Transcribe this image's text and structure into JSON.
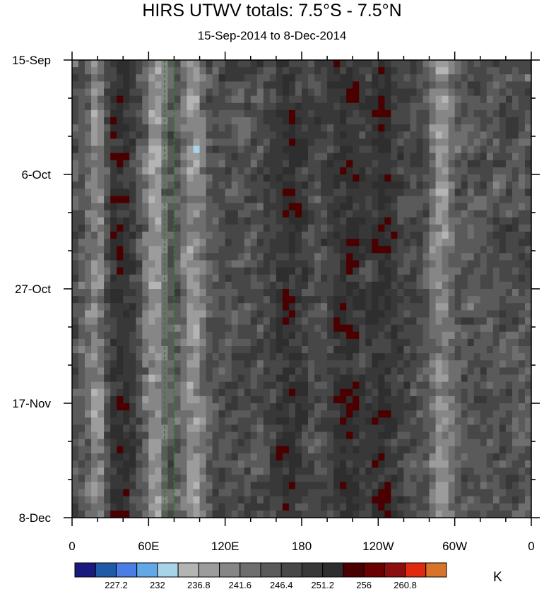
{
  "chart_data": {
    "type": "heatmap",
    "title": "HIRS UTWV totals: 7.5°S - 7.5°N",
    "subtitle": "15-Sep-2014 to 8-Dec-2014",
    "x_tick_labels": [
      "0",
      "60E",
      "120E",
      "180",
      "120W",
      "60W",
      "0"
    ],
    "x_range": [
      0,
      360
    ],
    "y_tick_labels": [
      "15-Sep",
      "6-Oct",
      "27-Oct",
      "17-Nov",
      "8-Dec"
    ],
    "y_range": [
      "2014-09-15",
      "2014-12-08"
    ],
    "reference_lines_lon": [
      72.5,
      80
    ],
    "reference_line_color": "#1f8a1f",
    "colorbar": {
      "unit": "K",
      "levels": [
        224.8,
        227.2,
        229.6,
        232,
        234.4,
        236.8,
        239.2,
        241.6,
        244,
        246.4,
        248.8,
        251.2,
        253.6,
        256,
        258.4,
        260.8,
        263.2
      ],
      "labels": [
        "227.2",
        "232",
        "236.8",
        "241.6",
        "246.4",
        "251.2",
        "256",
        "260.8"
      ],
      "colors": [
        "#1a1a7e",
        "#1f5aa6",
        "#4a7de6",
        "#62a8e6",
        "#a8d4ea",
        "#b4b4b4",
        "#9c9c9c",
        "#868686",
        "#6e6e6e",
        "#5a5a5a",
        "#474747",
        "#383838",
        "#2e2e2e",
        "#4a0000",
        "#6a0000",
        "#8c0e0e",
        "#e02a10",
        "#d8742a"
      ]
    },
    "moist_bands_lon": [
      20,
      65,
      95,
      290
    ],
    "dry_bands_lon": [
      35,
      170,
      215,
      245
    ]
  }
}
